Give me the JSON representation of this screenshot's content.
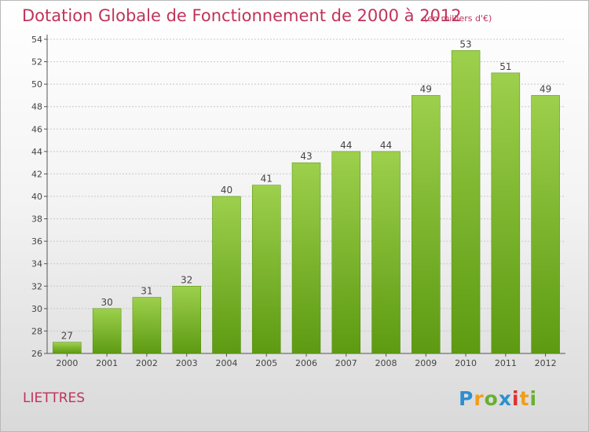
{
  "header": {
    "title": "Dotation Globale de Fonctionnement de 2000 à 2012",
    "subtitle": "(en milliers d'€)"
  },
  "footer": {
    "commune": "LIETTRES",
    "logo_text": "Proxiti"
  },
  "colors": {
    "bar_light": "#9dd04c",
    "bar_dark": "#5d9a12",
    "title": "#c0335b"
  },
  "chart_data": {
    "type": "bar",
    "categories": [
      "2000",
      "2001",
      "2002",
      "2003",
      "2004",
      "2005",
      "2006",
      "2007",
      "2008",
      "2009",
      "2010",
      "2011",
      "2012"
    ],
    "values": [
      27,
      30,
      31,
      32,
      40,
      41,
      43,
      44,
      44,
      49,
      53,
      51,
      49
    ],
    "ylim": [
      26,
      54
    ],
    "yticks": [
      26,
      28,
      30,
      32,
      34,
      36,
      38,
      40,
      42,
      44,
      46,
      48,
      50,
      52,
      54
    ],
    "grid": true
  }
}
